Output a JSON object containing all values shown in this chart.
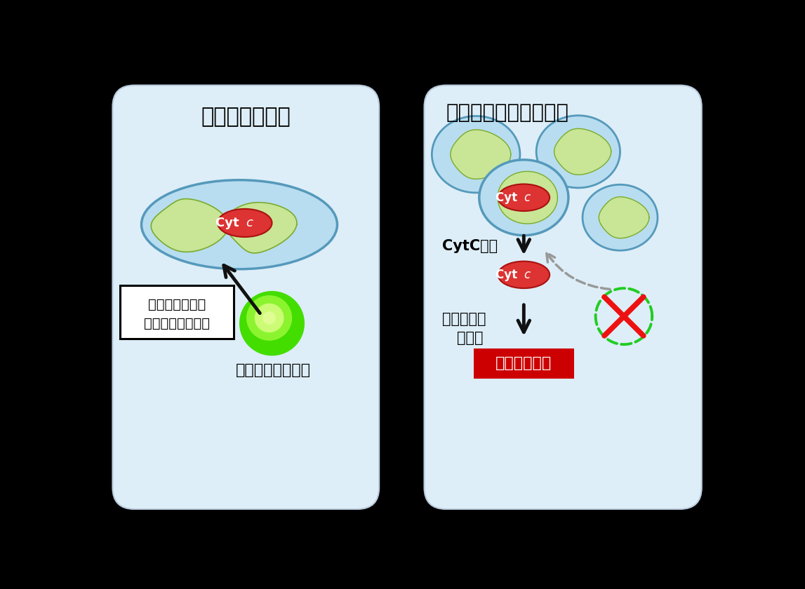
{
  "background_color": "#000000",
  "panel_bg": "#ddeef8",
  "panel_edge": "#bbccdd",
  "left_panel": {
    "title": "ミトコンドリア",
    "peroxisome_label": "ペルオキシソーム",
    "box_label1": "ミトコンドリア",
    "box_label2": "動態・機能の維持"
  },
  "right_panel": {
    "title": "ミトコンドリア断片化",
    "cytc_leak": "CytC漏出",
    "caspase_act1": "カスパーゼ・",
    "caspase_act2": "活性化",
    "caspase_label": "カスパーゼ・"
  },
  "cytc_label": "Cyt ",
  "mito_fill": "#c8e696",
  "mito_border": "#7aaa33",
  "mito_outer_fill": "#b8ddf0",
  "mito_outer_border": "#5599bb",
  "cytc_fill": "#dd3333",
  "cytc_border": "#aa1111",
  "arrow_color": "#111111",
  "dashed_arrow_color": "#999999",
  "cross_color": "#ee1111",
  "dashed_circle_color": "#22cc22",
  "caspase_bg": "#cc0000",
  "caspase_text_color": "#ffffff"
}
